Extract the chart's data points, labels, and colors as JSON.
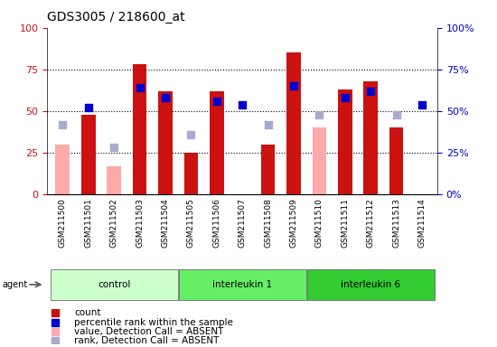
{
  "title": "GDS3005 / 218600_at",
  "samples": [
    "GSM211500",
    "GSM211501",
    "GSM211502",
    "GSM211503",
    "GSM211504",
    "GSM211505",
    "GSM211506",
    "GSM211507",
    "GSM211508",
    "GSM211509",
    "GSM211510",
    "GSM211511",
    "GSM211512",
    "GSM211513",
    "GSM211514"
  ],
  "count_values": [
    null,
    48,
    null,
    78,
    62,
    25,
    62,
    null,
    30,
    85,
    null,
    63,
    68,
    40,
    null
  ],
  "count_absent": [
    30,
    null,
    17,
    null,
    null,
    null,
    null,
    null,
    null,
    null,
    40,
    null,
    null,
    null,
    null
  ],
  "rank_values": [
    null,
    52,
    null,
    64,
    58,
    null,
    56,
    54,
    null,
    65,
    null,
    58,
    62,
    null,
    54
  ],
  "rank_absent": [
    42,
    null,
    28,
    null,
    null,
    36,
    null,
    null,
    42,
    null,
    48,
    null,
    null,
    48,
    null
  ],
  "groups": [
    {
      "label": "control",
      "start": 0,
      "end": 4,
      "color": "#ccffcc"
    },
    {
      "label": "interleukin 1",
      "start": 5,
      "end": 9,
      "color": "#66ee66"
    },
    {
      "label": "interleukin 6",
      "start": 10,
      "end": 14,
      "color": "#33cc33"
    }
  ],
  "count_color": "#cc1111",
  "rank_color": "#0000cc",
  "absent_count_color": "#ffaaaa",
  "absent_rank_color": "#aaaacc",
  "ylim": [
    0,
    100
  ],
  "yticks": [
    0,
    25,
    50,
    75,
    100
  ],
  "title_fontsize": 10,
  "bar_width": 0.55,
  "marker_size": 36
}
